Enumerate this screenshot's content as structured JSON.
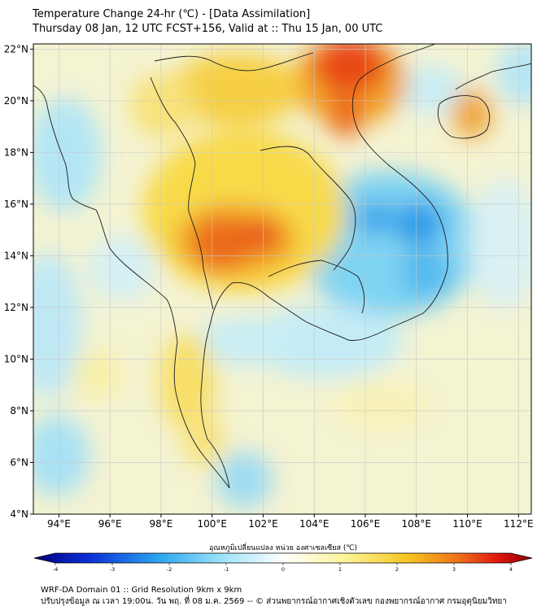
{
  "header": {
    "title_line1": "Temperature Change 24-hr (℃) - [Data Assimilation]",
    "title_line2": "Thursday 08 Jan, 12 UTC FCST+156, Valid at :: Thu 15 Jan, 00 UTC"
  },
  "map": {
    "lat_labels": [
      "22°N",
      "20°N",
      "18°N",
      "16°N",
      "14°N",
      "12°N",
      "10°N",
      "8°N",
      "6°N",
      "4°N"
    ],
    "lon_labels": [
      "94°E",
      "96°E",
      "98°E",
      "100°E",
      "102°E",
      "104°E",
      "106°E",
      "108°E",
      "110°E",
      "112°E"
    ],
    "lat_values": [
      22,
      20,
      18,
      16,
      14,
      12,
      10,
      8,
      6,
      4
    ],
    "lon_values": [
      94,
      96,
      98,
      100,
      102,
      104,
      106,
      108,
      110,
      112
    ],
    "extent": {
      "lon_min": 93,
      "lon_max": 112.5,
      "lat_min": 4,
      "lat_max": 22.2
    },
    "colors": {
      "coast": "#1a1a1a",
      "grid": "#c8c8c8",
      "background": "#f4f3d2"
    }
  },
  "colorbar": {
    "title": "อุณหภูมิเปลี่ยนแปลง หน่วย องศาเซลเซียส (℃)",
    "tick_labels": [
      "-4",
      "-3",
      "-2",
      "-1",
      "0",
      "1",
      "2",
      "3",
      "4"
    ],
    "tick_values": [
      -4,
      -3,
      -2,
      -1,
      0,
      1,
      2,
      3,
      4
    ],
    "range": [
      -4,
      4
    ],
    "color_stops": [
      "#00007f",
      "#0a2fd6",
      "#2aa6f0",
      "#9fe4f8",
      "#ffffff",
      "#fbf59c",
      "#f5c61e",
      "#f0731b",
      "#e2170f",
      "#8a0000"
    ]
  },
  "footer": {
    "line1": "WRF-DA Domain 01 :: Grid Resolution 9km x 9km",
    "line2": "ปรับปรุงข้อมูล ณ เวลา 19:00น. วัน พฤ. ที่ 08 ม.ค. 2569 -- © ส่วนพยากรณ์อากาศเชิงตัวเลข กองพยากรณ์อากาศ กรมอุตุนิยมวิทยา"
  }
}
